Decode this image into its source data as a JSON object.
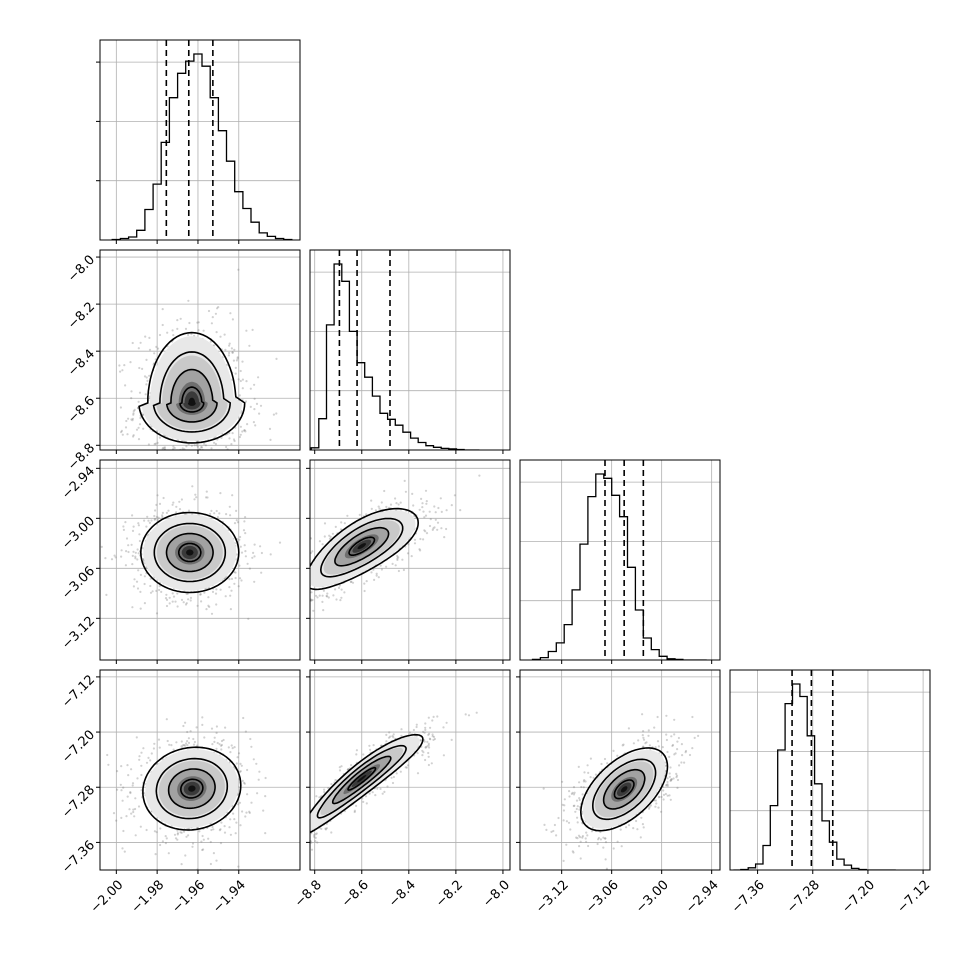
{
  "chart_data": {
    "type": "corner",
    "parameters": 4,
    "axes": [
      {
        "range": [
          -2.008,
          -1.91
        ],
        "ticks": [
          -2.0,
          -1.98,
          -1.96,
          -1.94
        ],
        "tick_labels": [
          "−2.00",
          "−1.98",
          "−1.96",
          "−1.94"
        ]
      },
      {
        "range": [
          -8.82,
          -7.97
        ],
        "ticks": [
          -8.8,
          -8.6,
          -8.4,
          -8.2,
          -8.0
        ],
        "tick_labels": [
          "−8.8",
          "−8.6",
          "−8.4",
          "−8.2",
          "−8.0"
        ]
      },
      {
        "range": [
          -3.17,
          -2.93
        ],
        "ticks": [
          -3.12,
          -3.06,
          -3.0,
          -2.94
        ],
        "tick_labels": [
          "−3.12",
          "−3.06",
          "−3.00",
          "−2.94"
        ]
      },
      {
        "range": [
          -7.4,
          -7.11
        ],
        "ticks": [
          -7.36,
          -7.28,
          -7.2,
          -7.12
        ],
        "tick_labels": [
          "−7.36",
          "−7.28",
          "−7.20",
          "−7.12"
        ]
      }
    ],
    "histograms": [
      {
        "param": 0,
        "x0": -2.002,
        "bin_width": 0.004,
        "counts": [
          1,
          3,
          6,
          19,
          60,
          110,
          192,
          280,
          328,
          352,
          366,
          342,
          280,
          215,
          155,
          95,
          62,
          35,
          14,
          7,
          3,
          1
        ],
        "quantiles": [
          -1.9755,
          -1.9645,
          -1.9527
        ]
      },
      {
        "param": 1,
        "x0": -8.815,
        "bin_width": 0.0325,
        "counts": [
          4,
          58,
          232,
          345,
          313,
          220,
          162,
          135,
          100,
          68,
          57,
          46,
          33,
          22,
          14,
          8,
          5,
          3,
          2,
          1,
          0,
          0
        ],
        "quantiles": [
          -8.695,
          -8.62,
          -8.48
        ]
      },
      {
        "param": 2,
        "x0": -3.155,
        "bin_width": 0.0095,
        "counts": [
          1,
          4,
          14,
          28,
          58,
          115,
          190,
          268,
          305,
          298,
          270,
          235,
          152,
          82,
          36,
          17,
          6,
          2,
          1,
          0,
          0,
          0
        ],
        "quantiles": [
          -3.068,
          -3.045,
          -3.022
        ]
      },
      {
        "param": 3,
        "x0": -7.395,
        "bin_width": 0.0107,
        "counts": [
          0,
          1,
          4,
          11,
          45,
          118,
          220,
          305,
          341,
          318,
          246,
          158,
          90,
          51,
          20,
          9,
          3,
          1,
          0,
          0,
          0,
          0
        ],
        "quantiles": [
          -7.31,
          -7.282,
          -7.251
        ]
      }
    ],
    "pairs": [
      {
        "x": 0,
        "y": 1,
        "mean": [
          -1.963,
          -8.62
        ],
        "sd": [
          0.012,
          0.1
        ],
        "corr": -0.15,
        "skew": 0.55
      },
      {
        "x": 0,
        "y": 2,
        "mean": [
          -1.964,
          -3.041
        ],
        "sd": [
          0.012,
          0.024
        ],
        "corr": 0.0,
        "skew": 0
      },
      {
        "x": 1,
        "y": 2,
        "mean": [
          -8.6,
          -3.035
        ],
        "sd": [
          0.12,
          0.024
        ],
        "corr": 0.72,
        "skew": 0.5
      },
      {
        "x": 0,
        "y": 3,
        "mean": [
          -1.963,
          -7.282
        ],
        "sd": [
          0.012,
          0.03
        ],
        "corr": 0.08,
        "skew": 0
      },
      {
        "x": 1,
        "y": 3,
        "mean": [
          -8.6,
          -7.27
        ],
        "sd": [
          0.13,
          0.036
        ],
        "corr": 0.93,
        "skew": 0.5
      },
      {
        "x": 2,
        "y": 3,
        "mean": [
          -3.045,
          -7.283
        ],
        "sd": [
          0.026,
          0.03
        ],
        "corr": 0.55,
        "skew": 0
      }
    ],
    "grid": true,
    "legend": "none"
  }
}
